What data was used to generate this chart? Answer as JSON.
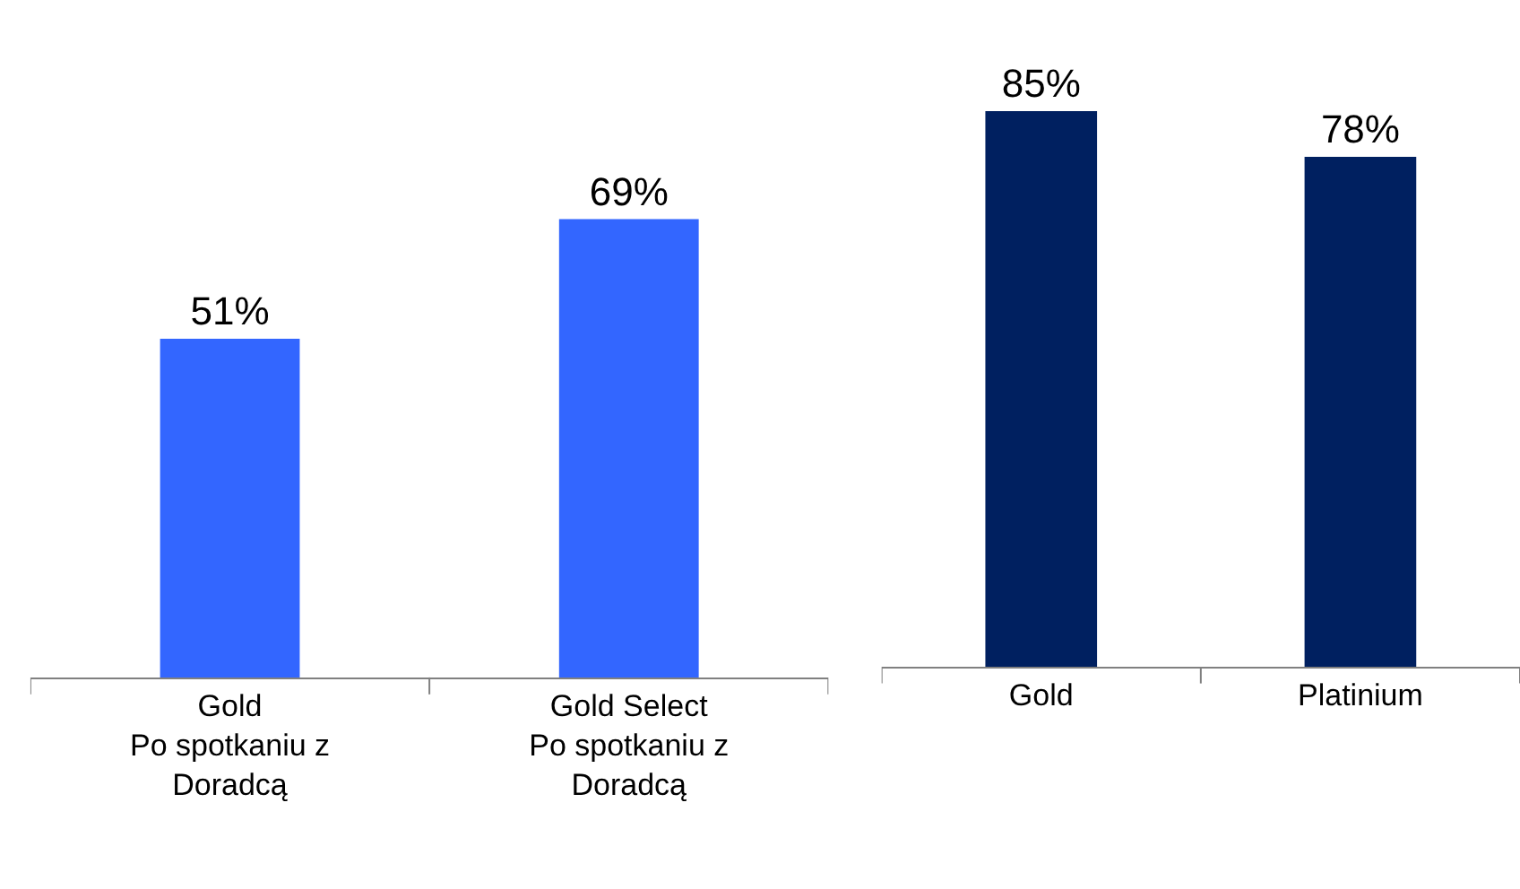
{
  "chart_data": [
    {
      "type": "bar",
      "categories": [
        "Gold\nPo spotkaniu z\nDoradcą",
        "Gold Select\nPo spotkaniu z\nDoradcą"
      ],
      "values": [
        51,
        69
      ],
      "color": "#3366ff",
      "value_labels": [
        "51%",
        "69%"
      ]
    },
    {
      "type": "bar",
      "categories": [
        "Gold",
        "Platinium"
      ],
      "values": [
        85,
        78
      ],
      "color": "#002060",
      "value_labels": [
        "85%",
        "78%"
      ]
    }
  ]
}
